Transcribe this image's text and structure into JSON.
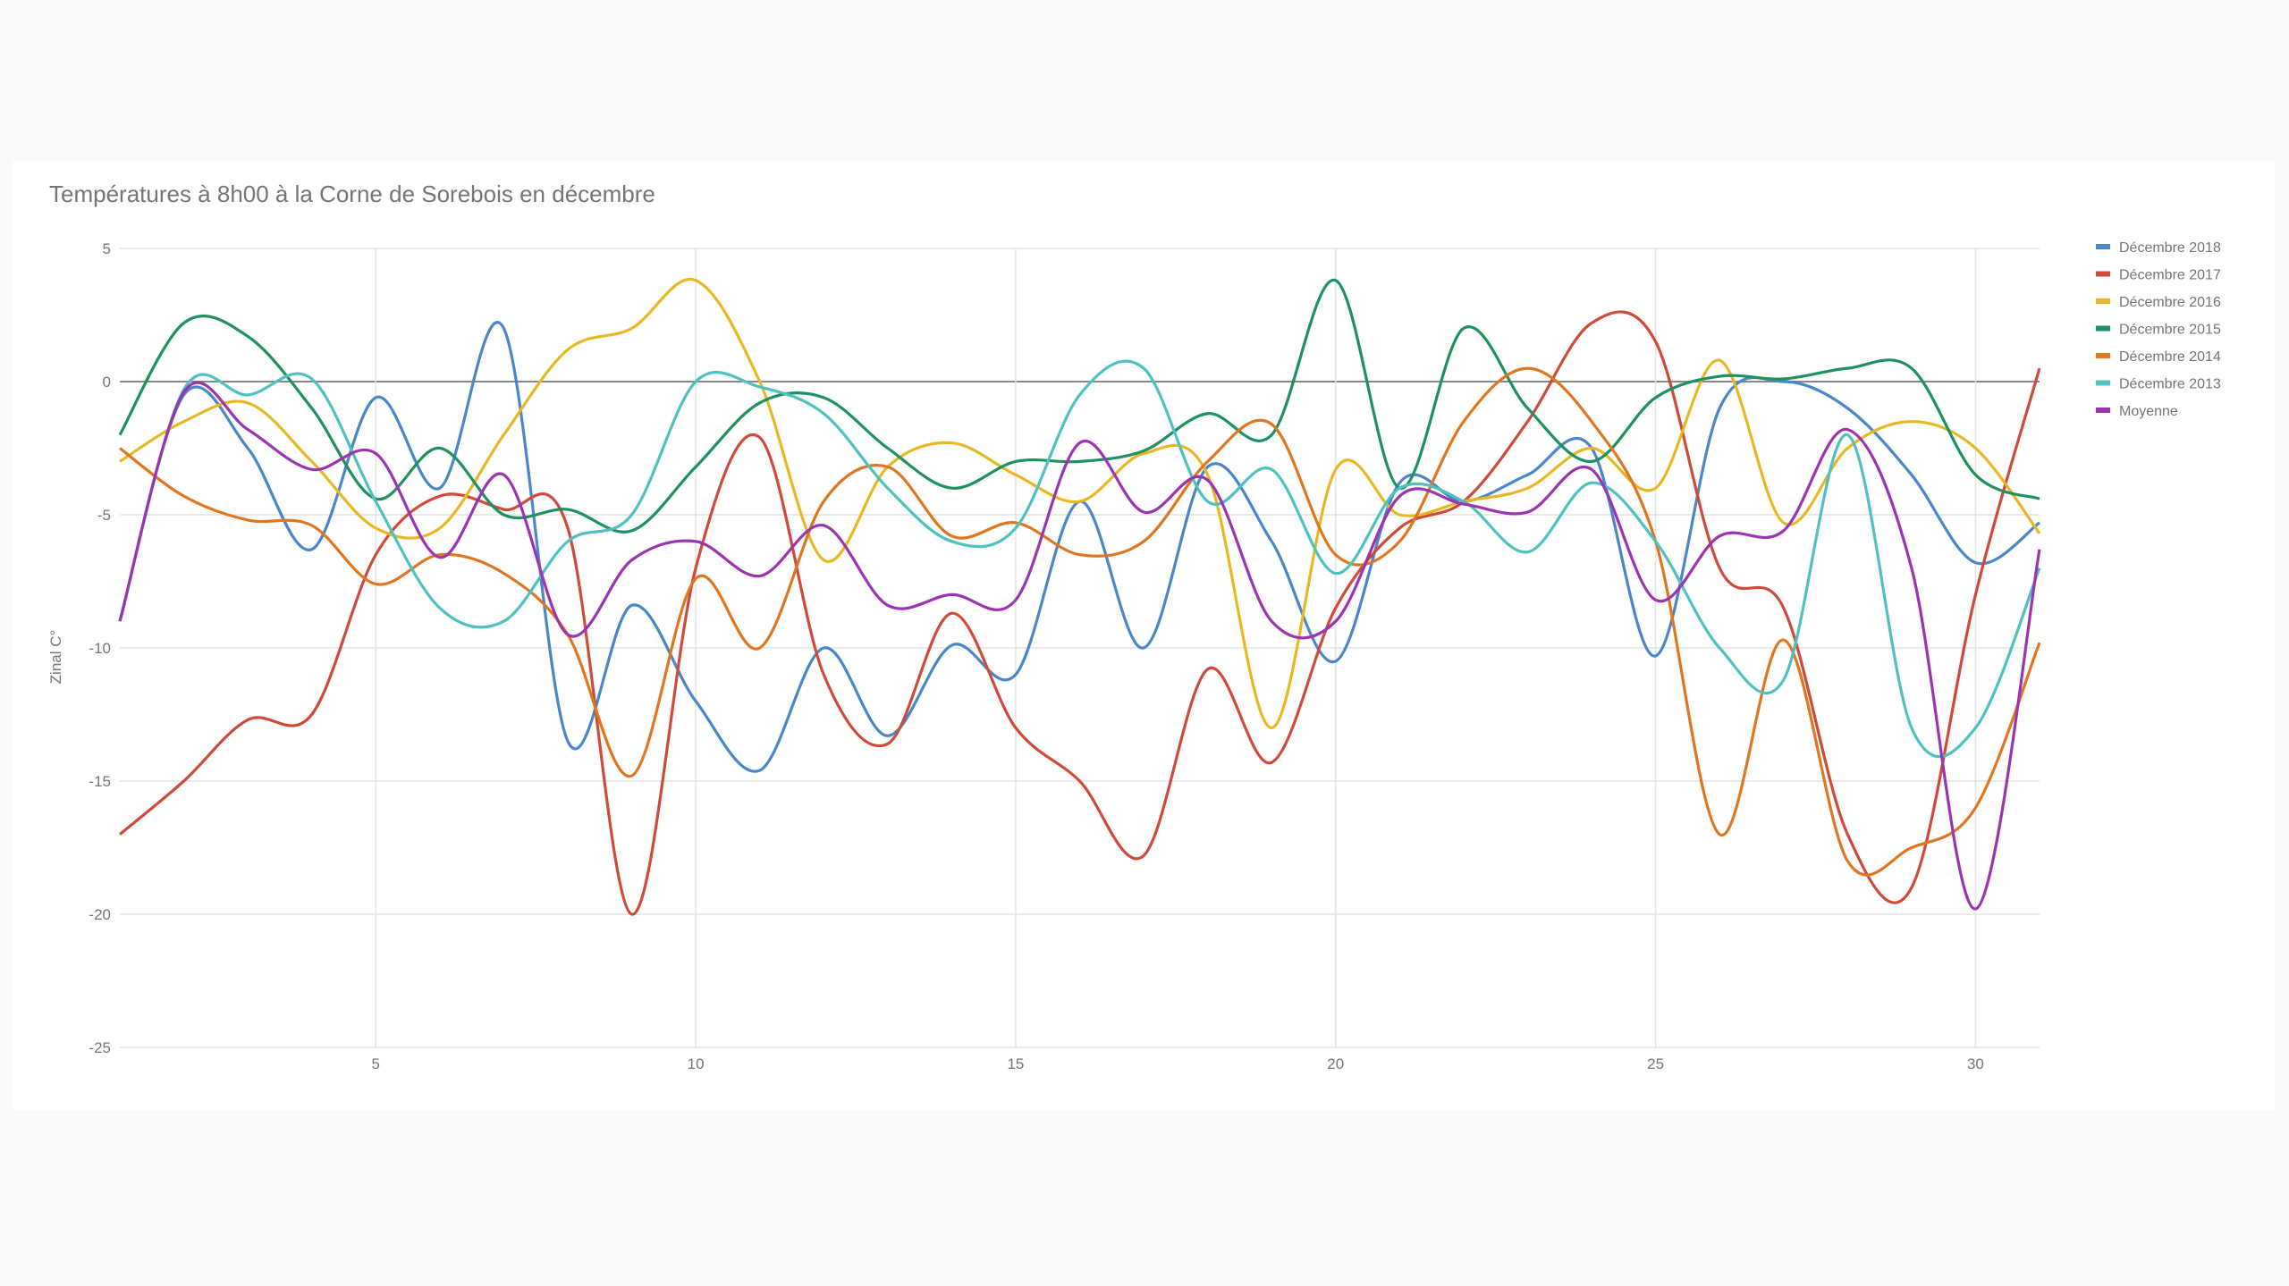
{
  "chart_data": {
    "type": "line",
    "title": "Températures à 8h00 à la Corne de Sorebois en décembre",
    "y_label": "Zinal C°",
    "x": [
      1,
      2,
      3,
      4,
      5,
      6,
      7,
      8,
      9,
      10,
      11,
      12,
      13,
      14,
      15,
      16,
      17,
      18,
      19,
      20,
      21,
      22,
      23,
      24,
      25,
      26,
      27,
      28,
      29,
      30,
      31
    ],
    "xlim": [
      1,
      31
    ],
    "xticks": [
      5,
      10,
      15,
      20,
      25,
      30
    ],
    "ylim": [
      -25,
      5
    ],
    "yticks": [
      -25,
      -20,
      -15,
      -10,
      -5,
      0,
      5
    ],
    "grid": true,
    "smooth": true,
    "legend": "right",
    "series": [
      {
        "name": "Décembre 2018",
        "color": "#4a86c8",
        "values": [
          -9,
          -0.5,
          -2.5,
          -6.3,
          -0.6,
          -4,
          2,
          -13.5,
          -8.4,
          -12,
          -14.6,
          -10,
          -13.3,
          -9.9,
          -11,
          -4.5,
          -10,
          -3.2,
          -6,
          -10.5,
          -3.8,
          -4.5,
          -3.5,
          -2.5,
          -10.3,
          -1,
          0,
          -1,
          -3.5,
          -6.8,
          -5.3
        ]
      },
      {
        "name": "Décembre 2017",
        "color": "#d04a3b",
        "values": [
          -17,
          -15,
          -12.7,
          -12.5,
          -6.5,
          -4.3,
          -4.8,
          -5.5,
          -20,
          -7,
          -2.1,
          -11,
          -13.6,
          -8.7,
          -13,
          -15,
          -17.8,
          -10.8,
          -14.3,
          -8.5,
          -5.5,
          -4.5,
          -1.5,
          2.2,
          1.5,
          -7,
          -8.5,
          -17,
          -19,
          -8,
          0.5
        ]
      },
      {
        "name": "Décembre 2016",
        "color": "#e8b824",
        "values": [
          -3,
          -1.5,
          -0.8,
          -3,
          -5.5,
          -5.5,
          -2,
          1.2,
          2,
          3.8,
          0,
          -6.7,
          -3.2,
          -2.3,
          -3.5,
          -4.5,
          -2.7,
          -3.5,
          -13,
          -3.3,
          -5,
          -4.5,
          -4,
          -2.5,
          -4,
          0.8,
          -5.3,
          -2.5,
          -1.5,
          -2.5,
          -5.7
        ]
      },
      {
        "name": "Décembre 2015",
        "color": "#1f9160",
        "values": [
          -2,
          2.2,
          1.7,
          -1,
          -4.4,
          -2.5,
          -5,
          -4.8,
          -5.6,
          -3.2,
          -0.8,
          -0.6,
          -2.5,
          -4,
          -3,
          -3,
          -2.6,
          -1.2,
          -2,
          3.8,
          -4,
          2,
          -1,
          -3,
          -0.6,
          0.2,
          0.1,
          0.5,
          0.5,
          -3.5,
          -4.4
        ]
      },
      {
        "name": "Décembre 2014",
        "color": "#e0761f",
        "values": [
          -2.5,
          -4.3,
          -5.2,
          -5.4,
          -7.6,
          -6.5,
          -7.2,
          -9.5,
          -14.8,
          -7.4,
          -10,
          -4.5,
          -3.2,
          -5.8,
          -5.3,
          -6.5,
          -6,
          -3,
          -1.6,
          -6.5,
          -6,
          -1.5,
          0.5,
          -1.5,
          -6,
          -17,
          -9.7,
          -18,
          -17.5,
          -16,
          -9.8
        ]
      },
      {
        "name": "Décembre 2013",
        "color": "#4fc1c0",
        "values": [
          -9,
          -0.3,
          -0.5,
          0.1,
          -4.5,
          -8.5,
          -9,
          -6,
          -5,
          0,
          -0.2,
          -1.2,
          -4,
          -6,
          -5.5,
          -0.5,
          0.5,
          -4.5,
          -3.3,
          -7.2,
          -4,
          -4.5,
          -6.4,
          -3.8,
          -6,
          -10,
          -11.2,
          -2,
          -13,
          -13,
          -7
        ]
      },
      {
        "name": "Moyenne",
        "color": "#9b34b0",
        "values": [
          -9,
          -0.4,
          -1.8,
          -3.3,
          -2.7,
          -6.6,
          -3.5,
          -9.5,
          -6.7,
          -6,
          -7.3,
          -5.4,
          -8.4,
          -8,
          -8.2,
          -2.3,
          -4.9,
          -3.7,
          -9,
          -9,
          -4.3,
          -4.6,
          -4.9,
          -3.3,
          -8.2,
          -5.8,
          -5.6,
          -1.8,
          -7,
          -19.8,
          -6.3
        ]
      }
    ]
  }
}
